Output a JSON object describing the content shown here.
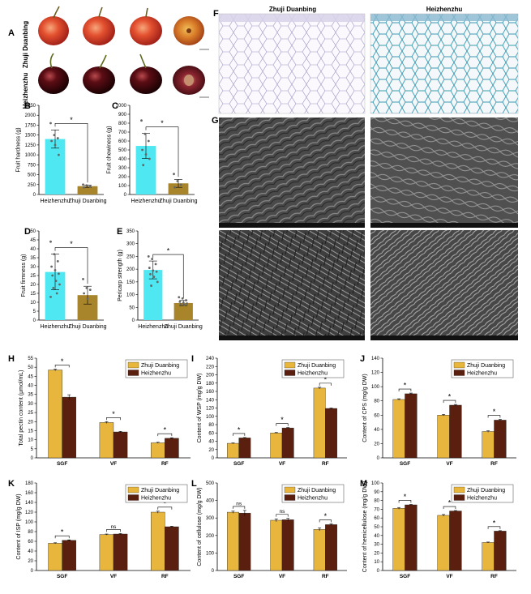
{
  "colors": {
    "cyan": "#4fe8f2",
    "olive": "#a8842a",
    "zhuji": "#e8b53d",
    "heizhen": "#5a1f0e",
    "axis": "#000000"
  },
  "panel_a": {
    "label": "A",
    "row1_label": "Zhuji Duanbing",
    "row2_label": "Heizhenzhu"
  },
  "panel_f": {
    "label": "F",
    "title_left": "Zhuji Duanbing",
    "title_right": "Heizhenzhu"
  },
  "panel_g": {
    "label": "G"
  },
  "chart_data": [
    {
      "id": "B",
      "type": "bar",
      "ylabel": "Fruit hardness (g)",
      "categories": [
        "Heizhenzhu",
        "Zhuji Duanbing"
      ],
      "values": [
        1400,
        210
      ],
      "errors": [
        230,
        30
      ],
      "ylim": [
        0,
        2250
      ],
      "yticks": [
        0,
        250,
        500,
        750,
        1000,
        1250,
        1500,
        1750,
        2000,
        2250
      ],
      "sig": "*",
      "points": [
        [
          1800,
          1500,
          1420,
          1350,
          1250,
          1000
        ],
        [
          250,
          230,
          200,
          180
        ]
      ]
    },
    {
      "id": "C",
      "type": "bar",
      "ylabel": "Fruit chewiness (g)",
      "categories": [
        "Heizhenzhu",
        "Zhuji Duanbing"
      ],
      "values": [
        545,
        125
      ],
      "errors": [
        140,
        45
      ],
      "ylim": [
        0,
        1000
      ],
      "yticks": [
        0,
        100,
        200,
        300,
        400,
        500,
        600,
        700,
        800,
        900,
        1000
      ],
      "sig": "*",
      "points": [
        [
          830,
          680,
          600,
          500,
          450,
          400,
          330
        ],
        [
          230,
          150,
          110,
          80
        ]
      ]
    },
    {
      "id": "D",
      "type": "bar",
      "ylabel": "Fruit firmness (g)",
      "categories": [
        "Heizhenzhu",
        "Zhuji Duanbing"
      ],
      "values": [
        27,
        14
      ],
      "errors": [
        10,
        5
      ],
      "ylim": [
        0,
        50
      ],
      "yticks": [
        0,
        5,
        10,
        15,
        20,
        25,
        30,
        35,
        40,
        45,
        50
      ],
      "sig": "*",
      "points": [
        [
          44,
          37,
          33,
          30,
          28,
          26,
          25,
          22,
          20,
          18,
          15,
          13
        ],
        [
          23,
          18,
          17,
          15,
          12
        ]
      ]
    },
    {
      "id": "E",
      "type": "bar",
      "ylabel": "Pericarp strength (g)",
      "categories": [
        "Heizhenzhu",
        "Zhuji Duanbing"
      ],
      "values": [
        197,
        67
      ],
      "errors": [
        35,
        10
      ],
      "ylim": [
        0,
        350
      ],
      "yticks": [
        0,
        50,
        100,
        150,
        200,
        250,
        300,
        350
      ],
      "sig": "*",
      "points": [
        [
          250,
          240,
          220,
          205,
          195,
          190,
          180,
          170,
          150,
          135
        ],
        [
          90,
          85,
          78,
          72,
          68,
          65,
          62,
          60
        ]
      ]
    },
    {
      "id": "H",
      "type": "bar",
      "ylabel": "Total pectin content (μmol/mL)",
      "categories": [
        "SGF",
        "VF",
        "RF"
      ],
      "series": [
        {
          "name": "Zhuji Duanbing",
          "values": [
            48.5,
            19.5,
            8.3
          ],
          "errors": [
            0.5,
            0.5,
            0.3
          ]
        },
        {
          "name": "Heizhenzhu",
          "values": [
            33.5,
            14.3,
            10.8
          ],
          "errors": [
            1.3,
            0.3,
            0.3
          ]
        }
      ],
      "ylim": [
        0,
        55
      ],
      "yticks": [
        0,
        5,
        10,
        15,
        20,
        25,
        30,
        35,
        40,
        45,
        50,
        55
      ],
      "sig": [
        "*",
        "*",
        "*"
      ]
    },
    {
      "id": "I",
      "type": "bar",
      "ylabel": "Content of WSP (mg/g DW)",
      "categories": [
        "SGF",
        "VF",
        "RF"
      ],
      "series": [
        {
          "name": "Zhuji Duanbing",
          "values": [
            35,
            60,
            168
          ],
          "errors": [
            1,
            1,
            2
          ]
        },
        {
          "name": "Heizhenzhu",
          "values": [
            48,
            72,
            119
          ],
          "errors": [
            1,
            1,
            1
          ]
        }
      ],
      "ylim": [
        0,
        240
      ],
      "yticks": [
        0,
        20,
        40,
        60,
        80,
        100,
        120,
        140,
        160,
        180,
        200,
        220,
        240
      ],
      "sig": [
        "*",
        "*",
        "*"
      ]
    },
    {
      "id": "J",
      "type": "bar",
      "ylabel": "Content of  CPS (mg/g DW)",
      "categories": [
        "SGF",
        "VF",
        "RF"
      ],
      "series": [
        {
          "name": "Zhuji Duanbing",
          "values": [
            82,
            60,
            37
          ],
          "errors": [
            1,
            1,
            1
          ]
        },
        {
          "name": "Heizhenzhu",
          "values": [
            90,
            74,
            53
          ],
          "errors": [
            1,
            1,
            1
          ]
        }
      ],
      "ylim": [
        0,
        140
      ],
      "yticks": [
        0,
        20,
        40,
        60,
        80,
        100,
        120,
        140
      ],
      "sig": [
        "*",
        "*",
        "*"
      ]
    },
    {
      "id": "K",
      "type": "bar",
      "ylabel": "Content of ISP (mg/g DW)",
      "categories": [
        "SGF",
        "VF",
        "RF"
      ],
      "series": [
        {
          "name": "Zhuji Duanbing",
          "values": [
            56,
            74,
            120
          ],
          "errors": [
            1,
            1,
            2
          ]
        },
        {
          "name": "Heizhenzhu",
          "values": [
            62,
            75,
            90
          ],
          "errors": [
            1,
            1,
            1
          ]
        }
      ],
      "ylim": [
        0,
        180
      ],
      "yticks": [
        0,
        20,
        40,
        60,
        80,
        100,
        120,
        140,
        160,
        180
      ],
      "sig": [
        "*",
        "ns",
        "*"
      ]
    },
    {
      "id": "L",
      "type": "bar",
      "ylabel": "Content of cellulose (mg/g DW)",
      "categories": [
        "SGF",
        "VF",
        "RF"
      ],
      "series": [
        {
          "name": "Zhuji Duanbing",
          "values": [
            333,
            287,
            235
          ],
          "errors": [
            6,
            8,
            8
          ]
        },
        {
          "name": "Heizhenzhu",
          "values": [
            328,
            290,
            262
          ],
          "errors": [
            15,
            8,
            4
          ]
        }
      ],
      "ylim": [
        0,
        500
      ],
      "yticks": [
        0,
        100,
        200,
        300,
        400,
        500
      ],
      "sig": [
        "ns",
        "ns",
        "*"
      ]
    },
    {
      "id": "M",
      "type": "bar",
      "ylabel": "Content of hemicellulose (mg/g DW)",
      "categories": [
        "SGF",
        "VF",
        "RF"
      ],
      "series": [
        {
          "name": "Zhuji Duanbing",
          "values": [
            71,
            63,
            32
          ],
          "errors": [
            1,
            1,
            0.5
          ]
        },
        {
          "name": "Heizhenzhu",
          "values": [
            75,
            68,
            45
          ],
          "errors": [
            0.5,
            0.5,
            0.5
          ]
        }
      ],
      "ylim": [
        0,
        100
      ],
      "yticks": [
        0,
        10,
        20,
        30,
        40,
        50,
        60,
        70,
        80,
        90,
        100
      ],
      "sig": [
        "*",
        "*",
        "*"
      ]
    }
  ]
}
